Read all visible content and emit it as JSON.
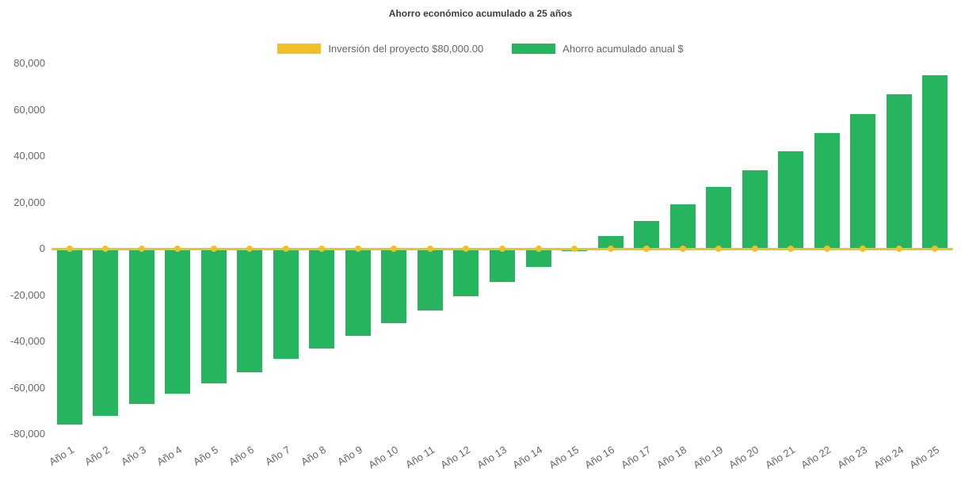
{
  "chart": {
    "title": "Ahorro económico acumulado a 25 años"
  },
  "chart_data": {
    "type": "bar",
    "title": "Ahorro económico acumulado a 25 años",
    "xlabel": "",
    "ylabel": "",
    "ylim": [
      -80000,
      80000
    ],
    "grid": false,
    "legend_position": "top",
    "background_color": "#ffffff",
    "y_ticks": [
      80000,
      60000,
      40000,
      20000,
      0,
      -20000,
      -40000,
      -60000,
      -80000
    ],
    "y_tick_labels": [
      "80,000",
      "60,000",
      "40,000",
      "20,000",
      "0",
      "-20,000",
      "-40,000",
      "-60,000",
      "-80,000"
    ],
    "categories": [
      "Año 1",
      "Año 2",
      "Año 3",
      "Año 4",
      "Año 5",
      "Año 6",
      "Año 7",
      "Año 8",
      "Año 9",
      "Año 10",
      "Año 11",
      "Año 12",
      "Año 13",
      "Año 14",
      "Año 15",
      "Año 16",
      "Año 17",
      "Año 18",
      "Año 19",
      "Año 20",
      "Año 21",
      "Año 22",
      "Año 23",
      "Año 24",
      "Año 25"
    ],
    "series": [
      {
        "name": "Inversión del proyecto $80,000.00",
        "type": "line",
        "color": "#F1C027",
        "values": [
          0,
          0,
          0,
          0,
          0,
          0,
          0,
          0,
          0,
          0,
          0,
          0,
          0,
          0,
          0,
          0,
          0,
          0,
          0,
          0,
          0,
          0,
          0,
          0,
          0
        ]
      },
      {
        "name": "Ahorro acumulado anual $",
        "type": "bar",
        "color": "#27B45E",
        "values": [
          -76000,
          -72000,
          -67000,
          -62500,
          -58000,
          -53500,
          -47500,
          -43000,
          -37500,
          -32000,
          -26500,
          -20500,
          -14500,
          -8000,
          -1000,
          5500,
          12000,
          19000,
          26500,
          34000,
          42000,
          50000,
          58000,
          66500,
          75000
        ]
      }
    ]
  }
}
